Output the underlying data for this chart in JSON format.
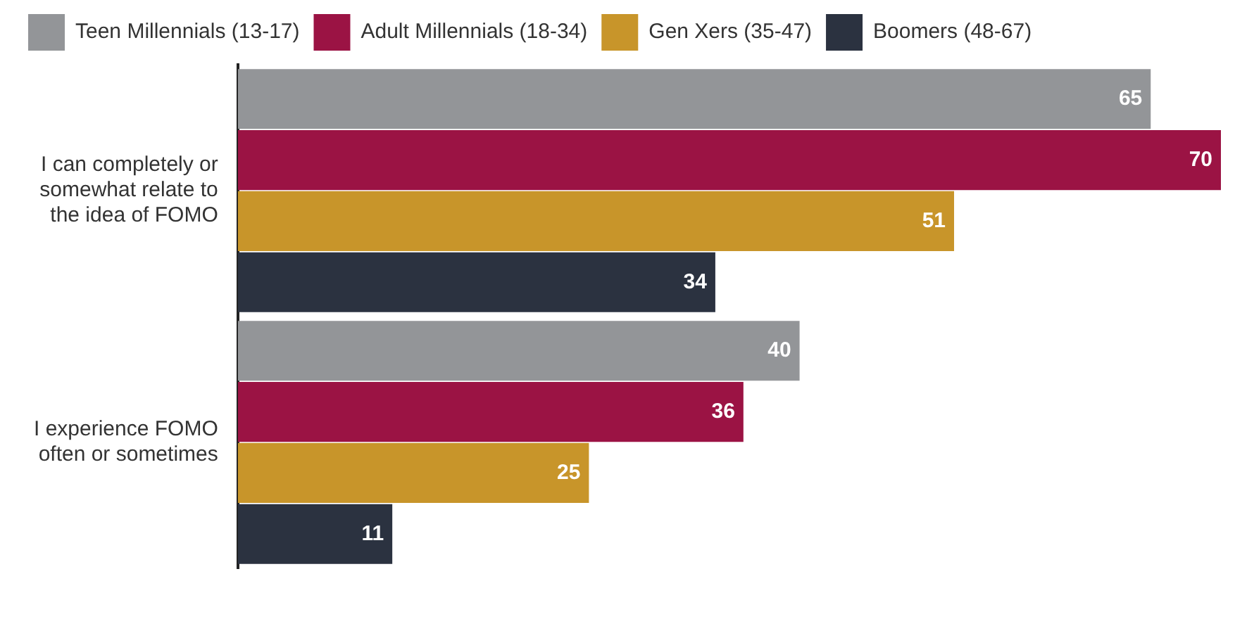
{
  "chart_data": {
    "type": "bar",
    "orientation": "horizontal",
    "data_labels": true,
    "legend": "top",
    "categories": [
      "I can completely or somewhat relate to the idea of FOMO",
      "I experience FOMO often or sometimes"
    ],
    "series": [
      {
        "name": "Teen Millennials (13-17)",
        "color": "#939598",
        "values": [
          65,
          40
        ]
      },
      {
        "name": "Adult Millennials (18-34)",
        "color": "#9b1344",
        "values": [
          70,
          36
        ]
      },
      {
        "name": "Gen Xers (35-47)",
        "color": "#c8952a",
        "values": [
          51,
          25
        ]
      },
      {
        "name": "Boomers (48-67)",
        "color": "#2b3240",
        "values": [
          34,
          11
        ]
      }
    ]
  }
}
